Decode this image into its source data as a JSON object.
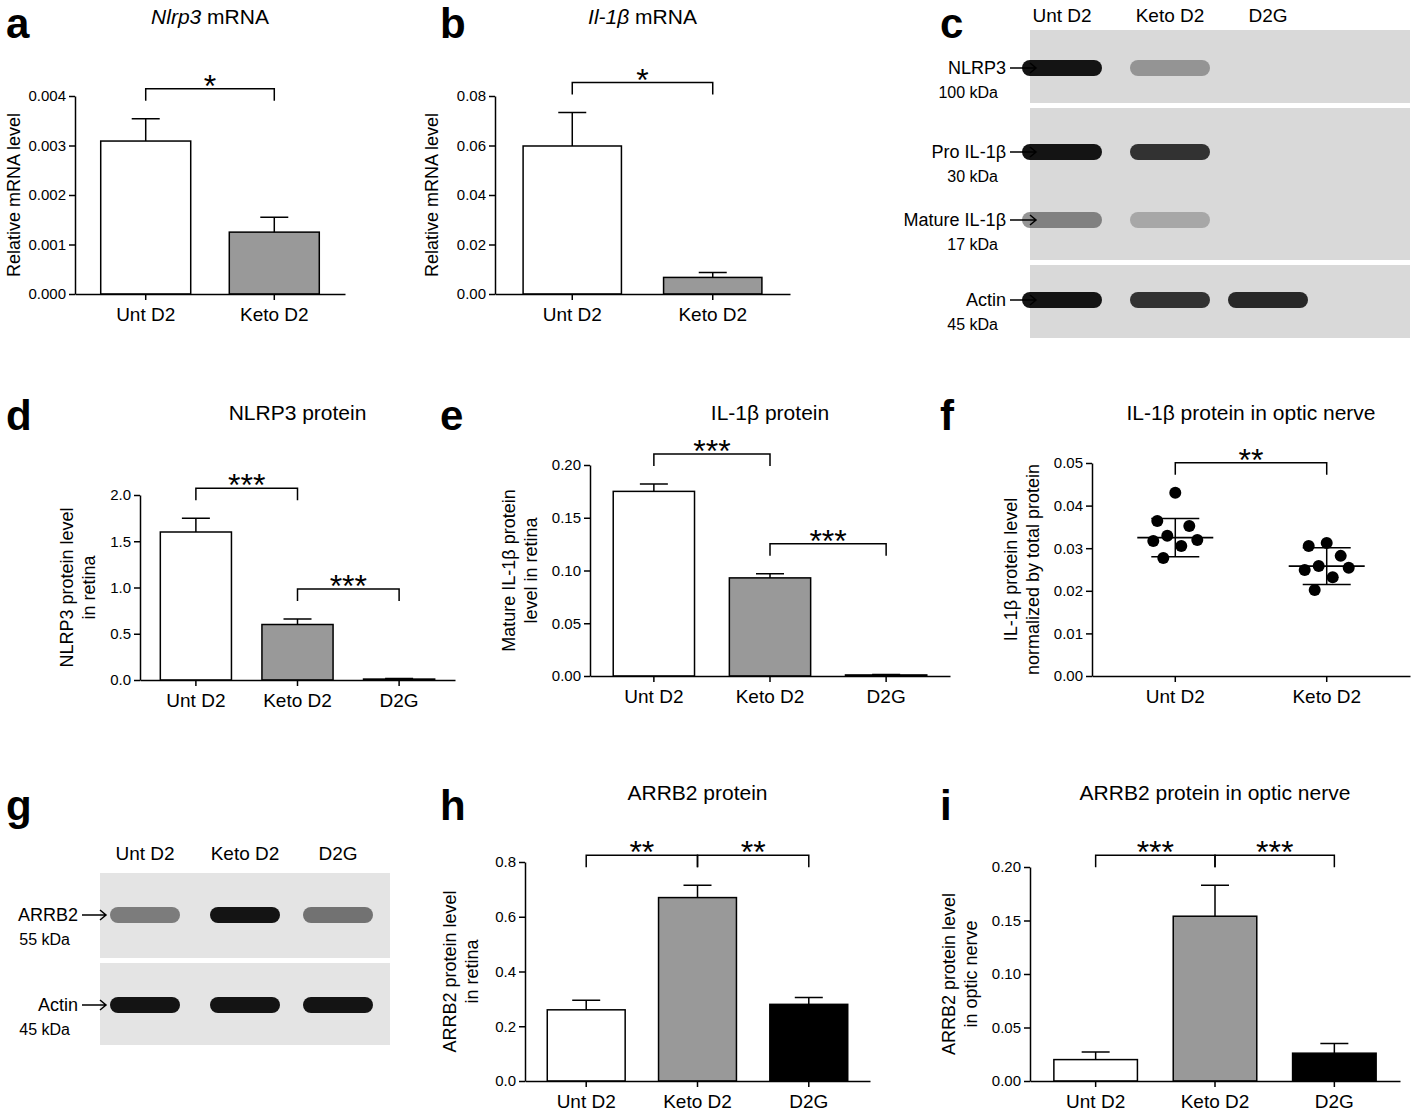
{
  "chart_data": [
    {
      "type": "bar",
      "panel": "a",
      "title": "Nlrp3 mRNA",
      "ylabel": "Relative mRNA level",
      "categories": [
        "Unt D2",
        "Keto D2"
      ],
      "values": [
        0.00309,
        0.00125
      ],
      "errors": [
        0.00045,
        0.0003
      ],
      "colors": [
        "#ffffff",
        "#999999"
      ],
      "ylim": [
        0,
        0.004
      ],
      "yticks": [
        {
          "value": 0,
          "label": "0.000"
        },
        0.001,
        0.002,
        0.003,
        0.004
      ],
      "annotations": [
        {
          "between": [
            "Unt D2",
            "Keto D2"
          ],
          "label": "*"
        }
      ]
    },
    {
      "type": "bar",
      "panel": "b",
      "title": "Il-1β mRNA",
      "ylabel": "Relative mRNA level",
      "categories": [
        "Unt D2",
        "Keto D2"
      ],
      "values": [
        0.0598,
        0.0067
      ],
      "errors": [
        0.0135,
        0.002
      ],
      "colors": [
        "#ffffff",
        "#999999"
      ],
      "ylim": [
        0,
        0.08
      ],
      "yticks": [
        {
          "value": 0,
          "label": "0.00"
        },
        0.02,
        0.04,
        0.06,
        0.08
      ],
      "annotations": [
        {
          "between": [
            "Unt D2",
            "Keto D2"
          ],
          "label": "*"
        }
      ]
    },
    {
      "type": "blot",
      "panel": "c",
      "lanes": [
        "Unt D2",
        "Keto D2",
        "D2G"
      ],
      "blocks": [
        {
          "rows": [
            {
              "label": "NLRP3",
              "size": "100 kDa",
              "bands": [
                1,
                0.35,
                0
              ]
            }
          ]
        },
        {
          "rows": [
            {
              "label": "Pro IL-1β",
              "size": "30 kDa",
              "bands": [
                1,
                0.85,
                0
              ]
            },
            {
              "label": "Mature IL-1β",
              "size": "17 kDa",
              "bands": [
                0.45,
                0.25,
                0
              ]
            }
          ]
        },
        {
          "rows": [
            {
              "label": "Actin",
              "size": "45 kDa",
              "bands": [
                1,
                0.85,
                0.9
              ]
            }
          ]
        }
      ]
    },
    {
      "type": "bar",
      "panel": "d",
      "title": "NLRP3 protein",
      "ylabel": [
        "NLRP3 protein level",
        "in retina"
      ],
      "categories": [
        "Unt D2",
        "Keto D2",
        "D2G"
      ],
      "values": [
        1.6,
        0.6,
        0.01
      ],
      "errors": [
        0.15,
        0.06,
        0.005
      ],
      "colors": [
        "#ffffff",
        "#999999",
        "#000000"
      ],
      "ylim": [
        0,
        2
      ],
      "yticks": [
        {
          "value": 0,
          "label": "0.0"
        },
        0.5,
        {
          "value": 1,
          "label": "1.0"
        },
        1.5,
        {
          "value": 2,
          "label": "2.0"
        }
      ],
      "annotations": [
        {
          "between": [
            "Unt D2",
            "Keto D2"
          ],
          "label": "***"
        },
        {
          "between": [
            "Keto D2",
            "D2G"
          ],
          "label": "***"
        }
      ]
    },
    {
      "type": "bar",
      "panel": "e",
      "title": "IL-1β protein",
      "ylabel": [
        "Mature IL-1β protein",
        "level in retina"
      ],
      "categories": [
        "Unt D2",
        "Keto D2",
        "D2G"
      ],
      "values": [
        0.175,
        0.093,
        0.001
      ],
      "errors": [
        0.007,
        0.004,
        0.0005
      ],
      "colors": [
        "#ffffff",
        "#999999",
        "#000000"
      ],
      "ylim": [
        0,
        0.2
      ],
      "yticks": [
        {
          "value": 0,
          "label": "0.00"
        },
        0.05,
        {
          "value": 0.1,
          "label": "0.10"
        },
        0.15,
        {
          "value": 0.2,
          "label": "0.20"
        }
      ],
      "annotations": [
        {
          "between": [
            "Unt D2",
            "Keto D2"
          ],
          "label": "***"
        },
        {
          "between": [
            "Keto D2",
            "D2G"
          ],
          "label": "***"
        }
      ]
    },
    {
      "type": "dot",
      "panel": "f",
      "title": "IL-1β protein in optic nerve",
      "ylabel": [
        "IL-1β protein level",
        "normalized by total protein"
      ],
      "categories": [
        "Unt D2",
        "Keto D2"
      ],
      "points": [
        [
          0.043,
          0.0364,
          0.0352,
          0.0329,
          0.0319,
          0.0317,
          0.0305,
          0.0277
        ],
        [
          0.0312,
          0.0305,
          0.0282,
          0.0258,
          0.0254,
          0.0249,
          0.0232,
          0.0202
        ]
      ],
      "values": [
        0.0325,
        0.0258
      ],
      "errors": [
        0.0045,
        0.0043
      ],
      "ylim": [
        0,
        0.05
      ],
      "yticks": [
        {
          "value": 0,
          "label": "0.00"
        },
        0.01,
        0.02,
        0.03,
        0.04,
        0.05
      ],
      "annotations": [
        {
          "between": [
            "Unt D2",
            "Keto D2"
          ],
          "label": "**"
        }
      ]
    },
    {
      "type": "blot",
      "panel": "g",
      "lanes": [
        "Unt D2",
        "Keto D2",
        "D2G"
      ],
      "blocks": [
        {
          "rows": [
            {
              "label": "ARRB2",
              "size": "55 kDa",
              "bands": [
                0.5,
                1,
                0.55
              ]
            }
          ]
        },
        {
          "rows": [
            {
              "label": "Actin",
              "size": "45 kDa",
              "bands": [
                1,
                1,
                1
              ]
            }
          ]
        }
      ]
    },
    {
      "type": "bar",
      "panel": "h",
      "title": "ARRB2 protein",
      "ylabel": [
        "ARRB2 protein level",
        "in retina"
      ],
      "categories": [
        "Unt D2",
        "Keto D2",
        "D2G"
      ],
      "values": [
        0.26,
        0.67,
        0.28
      ],
      "errors": [
        0.035,
        0.045,
        0.025
      ],
      "colors": [
        "#ffffff",
        "#999999",
        "#000000"
      ],
      "ylim": [
        0,
        0.8
      ],
      "yticks": [
        {
          "value": 0,
          "label": "0.0"
        },
        0.2,
        0.4,
        0.6,
        0.8
      ],
      "annotations": [
        {
          "between": [
            "Unt D2",
            "Keto D2"
          ],
          "label": "**"
        },
        {
          "between": [
            "Keto D2",
            "D2G"
          ],
          "label": "**"
        }
      ]
    },
    {
      "type": "bar",
      "panel": "i",
      "title": "ARRB2 protein in optic nerve",
      "ylabel": [
        "ARRB2 protein level",
        "in optic nerve"
      ],
      "categories": [
        "Unt D2",
        "Keto D2",
        "D2G"
      ],
      "values": [
        0.02,
        0.154,
        0.026
      ],
      "errors": [
        0.007,
        0.029,
        0.009
      ],
      "colors": [
        "#ffffff",
        "#999999",
        "#000000"
      ],
      "ylim": [
        0,
        0.2
      ],
      "yticks": [
        {
          "value": 0,
          "label": "0.00"
        },
        0.05,
        {
          "value": 0.1,
          "label": "0.10"
        },
        0.15,
        {
          "value": 0.2,
          "label": "0.20"
        }
      ],
      "annotations": [
        {
          "between": [
            "Unt D2",
            "Keto D2"
          ],
          "label": "***"
        },
        {
          "between": [
            "Keto D2",
            "D2G"
          ],
          "label": "***"
        }
      ]
    }
  ]
}
